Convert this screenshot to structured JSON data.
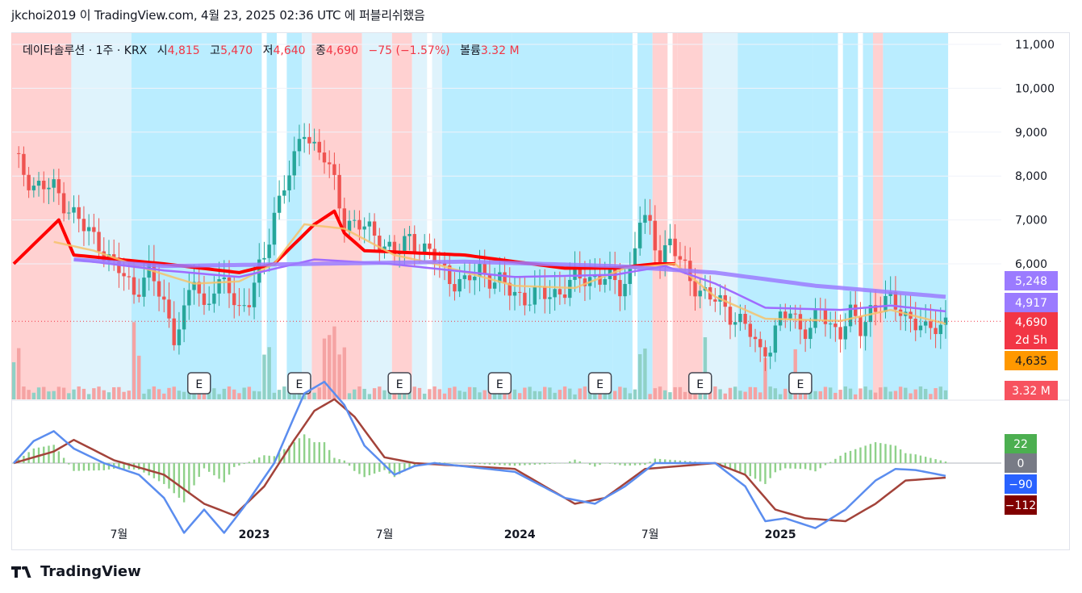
{
  "header": {
    "text": "jkchoi2019 이 TradingView.com, 4월 23, 2025 02:36 UTC 에 퍼블리쉬했음"
  },
  "legend": {
    "symbol": "데이타솔루션 · 1주 · KRX",
    "open_label": "시",
    "open": "4,815",
    "high_label": "고",
    "high": "5,470",
    "low_label": "저",
    "low": "4,640",
    "close_label": "종",
    "close": "4,690",
    "change": "−75 (−1.57%)",
    "volume_label": "볼륨",
    "volume": "3.32 M"
  },
  "footer": {
    "brand": "TradingView"
  },
  "colors": {
    "up": "#26a69a",
    "down": "#ef5350",
    "ma_long": "#9b7bff",
    "ma_mid": "#9f6bff",
    "ma_short": "#f6c26b",
    "ema": "#ff0000",
    "macd": "#5b8def",
    "signal": "#a3433a",
    "bg_red": "#ffcccc",
    "bg_cyan": "#b3ebff",
    "bg_lightblue": "#dcf2fc"
  },
  "chart_data": [
    {
      "type": "candlestick",
      "title": "데이타솔루션 · 1주 · KRX",
      "interval": "1W",
      "x_ticks": [
        "7월",
        "2023",
        "7월",
        "2024",
        "7월",
        "2025"
      ],
      "y_ticks": [
        "11,000",
        "10,000",
        "9,000",
        "8,000",
        "7,000",
        "6,000"
      ],
      "ylim": [
        3300,
        11300
      ],
      "price_labels": [
        {
          "text": "5,248",
          "color": "#9b7bff",
          "value": 5248
        },
        {
          "text": "4,917",
          "color": "#9b7bff",
          "value": 4917
        },
        {
          "text": "4,690",
          "color": "#f23645",
          "value": 4690
        },
        {
          "text": "2d 5h",
          "color": "#f23645"
        },
        {
          "text": "4,635",
          "color": "#ff9800",
          "value": 4635
        },
        {
          "text": "3.32 M",
          "color": "#f7525f"
        }
      ],
      "earnings_marker": "E",
      "earnings_count": 7,
      "series": [
        {
          "name": "price",
          "anchors": [
            [
              0,
              8400
            ],
            [
              4,
              7800
            ],
            [
              8,
              7700
            ],
            [
              11,
              7300
            ],
            [
              14,
              6800
            ],
            [
              17,
              6500
            ],
            [
              19,
              6100
            ],
            [
              22,
              5700
            ],
            [
              24,
              5400
            ],
            [
              27,
              5800
            ],
            [
              30,
              5100
            ],
            [
              32,
              4400
            ],
            [
              34,
              4800
            ],
            [
              36,
              5700
            ],
            [
              38,
              5000
            ],
            [
              40,
              5500
            ],
            [
              43,
              5400
            ],
            [
              45,
              5000
            ],
            [
              47,
              5200
            ],
            [
              50,
              6100
            ],
            [
              52,
              7200
            ],
            [
              54,
              7800
            ],
            [
              56,
              8300
            ],
            [
              58,
              9100
            ],
            [
              60,
              8700
            ],
            [
              62,
              8400
            ],
            [
              64,
              7800
            ],
            [
              66,
              7000
            ],
            [
              70,
              6800
            ],
            [
              73,
              6600
            ],
            [
              76,
              6200
            ],
            [
              79,
              6600
            ],
            [
              81,
              6400
            ],
            [
              84,
              6100
            ],
            [
              87,
              5700
            ],
            [
              90,
              5500
            ],
            [
              93,
              5900
            ],
            [
              96,
              5600
            ],
            [
              99,
              5400
            ],
            [
              103,
              5200
            ],
            [
              107,
              5350
            ],
            [
              110,
              5400
            ],
            [
              113,
              5700
            ],
            [
              116,
              5700
            ],
            [
              119,
              5600
            ],
            [
              121,
              5500
            ],
            [
              123,
              5800
            ],
            [
              125,
              7000
            ],
            [
              127,
              6800
            ],
            [
              129,
              6200
            ],
            [
              131,
              6500
            ],
            [
              133,
              6000
            ],
            [
              135,
              5700
            ],
            [
              137,
              5400
            ],
            [
              139,
              5200
            ],
            [
              141,
              5100
            ],
            [
              144,
              4800
            ],
            [
              147,
              4400
            ],
            [
              149,
              4000
            ],
            [
              151,
              4200
            ],
            [
              153,
              4700
            ],
            [
              155,
              4900
            ],
            [
              157,
              4600
            ],
            [
              159,
              4500
            ],
            [
              161,
              4900
            ],
            [
              163,
              4600
            ],
            [
              165,
              4500
            ],
            [
              167,
              4800
            ],
            [
              169,
              4500
            ],
            [
              171,
              5000
            ],
            [
              173,
              5050
            ],
            [
              175,
              5100
            ],
            [
              177,
              5000
            ],
            [
              179,
              4750
            ],
            [
              182,
              4400
            ],
            [
              184,
              4650
            ],
            [
              186,
              4690
            ]
          ]
        },
        {
          "name": "ma_long",
          "anchors": [
            [
              12,
              6100
            ],
            [
              30,
              5950
            ],
            [
              60,
              6000
            ],
            [
              90,
              6050
            ],
            [
              120,
              5950
            ],
            [
              140,
              5800
            ],
            [
              160,
              5500
            ],
            [
              186,
              5248
            ]
          ]
        },
        {
          "name": "ma_mid",
          "anchors": [
            [
              12,
              6100
            ],
            [
              30,
              5850
            ],
            [
              45,
              5700
            ],
            [
              60,
              6100
            ],
            [
              75,
              6000
            ],
            [
              100,
              5700
            ],
            [
              120,
              5750
            ],
            [
              130,
              5950
            ],
            [
              140,
              5550
            ],
            [
              150,
              5000
            ],
            [
              165,
              4950
            ],
            [
              175,
              5050
            ],
            [
              186,
              4917
            ]
          ]
        },
        {
          "name": "ma_short",
          "anchors": [
            [
              8,
              6500
            ],
            [
              16,
              6300
            ],
            [
              26,
              5900
            ],
            [
              36,
              5550
            ],
            [
              45,
              5600
            ],
            [
              52,
              6000
            ],
            [
              58,
              6900
            ],
            [
              66,
              6800
            ],
            [
              76,
              6200
            ],
            [
              84,
              6000
            ],
            [
              100,
              5500
            ],
            [
              112,
              5450
            ],
            [
              122,
              5900
            ],
            [
              132,
              6000
            ],
            [
              140,
              5250
            ],
            [
              150,
              4750
            ],
            [
              165,
              4700
            ],
            [
              175,
              4950
            ],
            [
              186,
              4635
            ]
          ]
        },
        {
          "name": "ema",
          "anchors": [
            [
              0,
              6000
            ],
            [
              9,
              7000
            ],
            [
              12,
              6200
            ],
            [
              30,
              6000
            ],
            [
              45,
              5800
            ],
            [
              52,
              6000
            ],
            [
              60,
              6900
            ],
            [
              64,
              7200
            ],
            [
              66,
              6700
            ],
            [
              70,
              6300
            ],
            [
              90,
              6200
            ],
            [
              110,
              5900
            ],
            [
              120,
              5900
            ],
            [
              128,
              6000
            ],
            [
              132,
              6000
            ]
          ]
        }
      ],
      "volume": {
        "last": "3.32 M"
      }
    },
    {
      "type": "line",
      "title": "",
      "ylim": [
        -165,
        85
      ],
      "labels": [
        {
          "text": "22",
          "color": "#4caf50",
          "value": 22
        },
        {
          "text": "0",
          "color": "#787b86",
          "value": 0
        },
        {
          "text": "−90",
          "color": "#2962ff",
          "value": -90
        },
        {
          "text": "−112",
          "color": "#800000",
          "value": -112
        }
      ],
      "series": [
        {
          "name": "macd",
          "anchors": [
            [
              0,
              0
            ],
            [
              4,
              38
            ],
            [
              8,
              55
            ],
            [
              12,
              25
            ],
            [
              18,
              0
            ],
            [
              25,
              -20
            ],
            [
              30,
              -60
            ],
            [
              34,
              -120
            ],
            [
              38,
              -80
            ],
            [
              42,
              -120
            ],
            [
              46,
              -75
            ],
            [
              52,
              0
            ],
            [
              58,
              120
            ],
            [
              62,
              140
            ],
            [
              66,
              100
            ],
            [
              70,
              30
            ],
            [
              76,
              -20
            ],
            [
              80,
              -5
            ],
            [
              84,
              0
            ],
            [
              100,
              -15
            ],
            [
              110,
              -60
            ],
            [
              116,
              -70
            ],
            [
              122,
              -40
            ],
            [
              128,
              0
            ],
            [
              140,
              0
            ],
            [
              146,
              -40
            ],
            [
              150,
              -100
            ],
            [
              154,
              -95
            ],
            [
              160,
              -112
            ],
            [
              166,
              -80
            ],
            [
              172,
              -30
            ],
            [
              176,
              -10
            ],
            [
              180,
              -12
            ],
            [
              186,
              -22
            ]
          ]
        },
        {
          "name": "signal",
          "anchors": [
            [
              0,
              0
            ],
            [
              8,
              20
            ],
            [
              12,
              40
            ],
            [
              20,
              5
            ],
            [
              30,
              -20
            ],
            [
              38,
              -70
            ],
            [
              44,
              -90
            ],
            [
              50,
              -40
            ],
            [
              56,
              40
            ],
            [
              60,
              90
            ],
            [
              64,
              110
            ],
            [
              68,
              80
            ],
            [
              74,
              10
            ],
            [
              80,
              0
            ],
            [
              100,
              -10
            ],
            [
              112,
              -70
            ],
            [
              118,
              -60
            ],
            [
              126,
              -10
            ],
            [
              140,
              0
            ],
            [
              146,
              -20
            ],
            [
              152,
              -80
            ],
            [
              158,
              -95
            ],
            [
              166,
              -100
            ],
            [
              172,
              -70
            ],
            [
              178,
              -30
            ],
            [
              186,
              -25
            ]
          ]
        }
      ]
    }
  ]
}
